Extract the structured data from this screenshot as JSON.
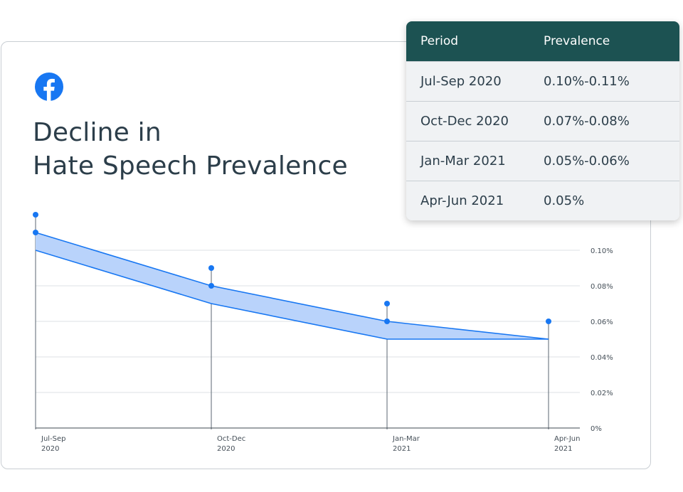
{
  "title_lines": [
    "Decline in",
    "Hate Speech Prevalence"
  ],
  "logo_icon": "facebook-logo-icon",
  "colors": {
    "accent": "#1877f2",
    "band_fill": "#b9d3fb",
    "header_bg": "#1c5252",
    "text": "#2c3e4a"
  },
  "table": {
    "headers": [
      "Period",
      "Prevalence"
    ],
    "rows": [
      [
        "Jul-Sep 2020",
        "0.10%-0.11%"
      ],
      [
        "Oct-Dec 2020",
        "0.07%-0.08%"
      ],
      [
        "Jan-Mar 2021",
        "0.05%-0.06%"
      ],
      [
        "Apr-Jun 2021",
        "0.05%"
      ]
    ]
  },
  "chart_data": {
    "type": "area",
    "title": "Decline in Hate Speech Prevalence",
    "categories": [
      [
        "Jul-Sep",
        "2020"
      ],
      [
        "Oct-Dec",
        "2020"
      ],
      [
        "Jan-Mar",
        "2021"
      ],
      [
        "Apr-Jun",
        "2021"
      ]
    ],
    "series": [
      {
        "name": "",
        "values": [
          0.1,
          0.07,
          0.05,
          0.05
        ]
      },
      {
        "name": "",
        "values": [
          0.11,
          0.08,
          0.06,
          0.05
        ]
      }
    ],
    "marker_values": [
      0.12,
      0.09,
      0.07,
      0.06
    ],
    "ylim": [
      0,
      0.1
    ],
    "yticks": [
      0,
      0.02,
      0.04,
      0.06,
      0.08,
      0.1
    ],
    "ytick_labels": [
      "0%",
      "0.02%",
      "0.04%",
      "0.06%",
      "0.08%",
      "0.10%"
    ],
    "grid": true,
    "yaxis_side": "right"
  }
}
